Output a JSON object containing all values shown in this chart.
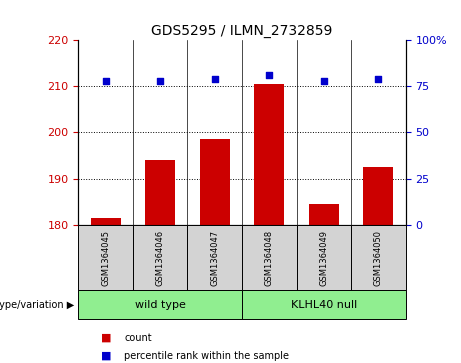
{
  "title": "GDS5295 / ILMN_2732859",
  "samples": [
    "GSM1364045",
    "GSM1364046",
    "GSM1364047",
    "GSM1364048",
    "GSM1364049",
    "GSM1364050"
  ],
  "count_values": [
    181.5,
    194.0,
    198.5,
    210.5,
    184.5,
    192.5
  ],
  "percentile_values": [
    78,
    78,
    79,
    81,
    78,
    79
  ],
  "ylim_left": [
    180,
    220
  ],
  "ylim_right": [
    0,
    100
  ],
  "yticks_left": [
    180,
    190,
    200,
    210,
    220
  ],
  "yticks_right": [
    0,
    25,
    50,
    75,
    100
  ],
  "bar_color": "#cc0000",
  "dot_color": "#0000cc",
  "groups": [
    {
      "label": "wild type",
      "indices": [
        0,
        1,
        2
      ],
      "color": "#90ee90"
    },
    {
      "label": "KLHL40 null",
      "indices": [
        3,
        4,
        5
      ],
      "color": "#90ee90"
    }
  ],
  "group_label_prefix": "genotype/variation",
  "legend_count_label": "count",
  "legend_percentile_label": "percentile rank within the sample",
  "sample_box_color": "#d3d3d3",
  "plot_bg_color": "#ffffff",
  "left_label_color": "#cc0000",
  "right_label_color": "#0000cc",
  "title_fontsize": 10,
  "tick_fontsize": 8,
  "sample_fontsize": 6,
  "group_fontsize": 8,
  "legend_fontsize": 7
}
